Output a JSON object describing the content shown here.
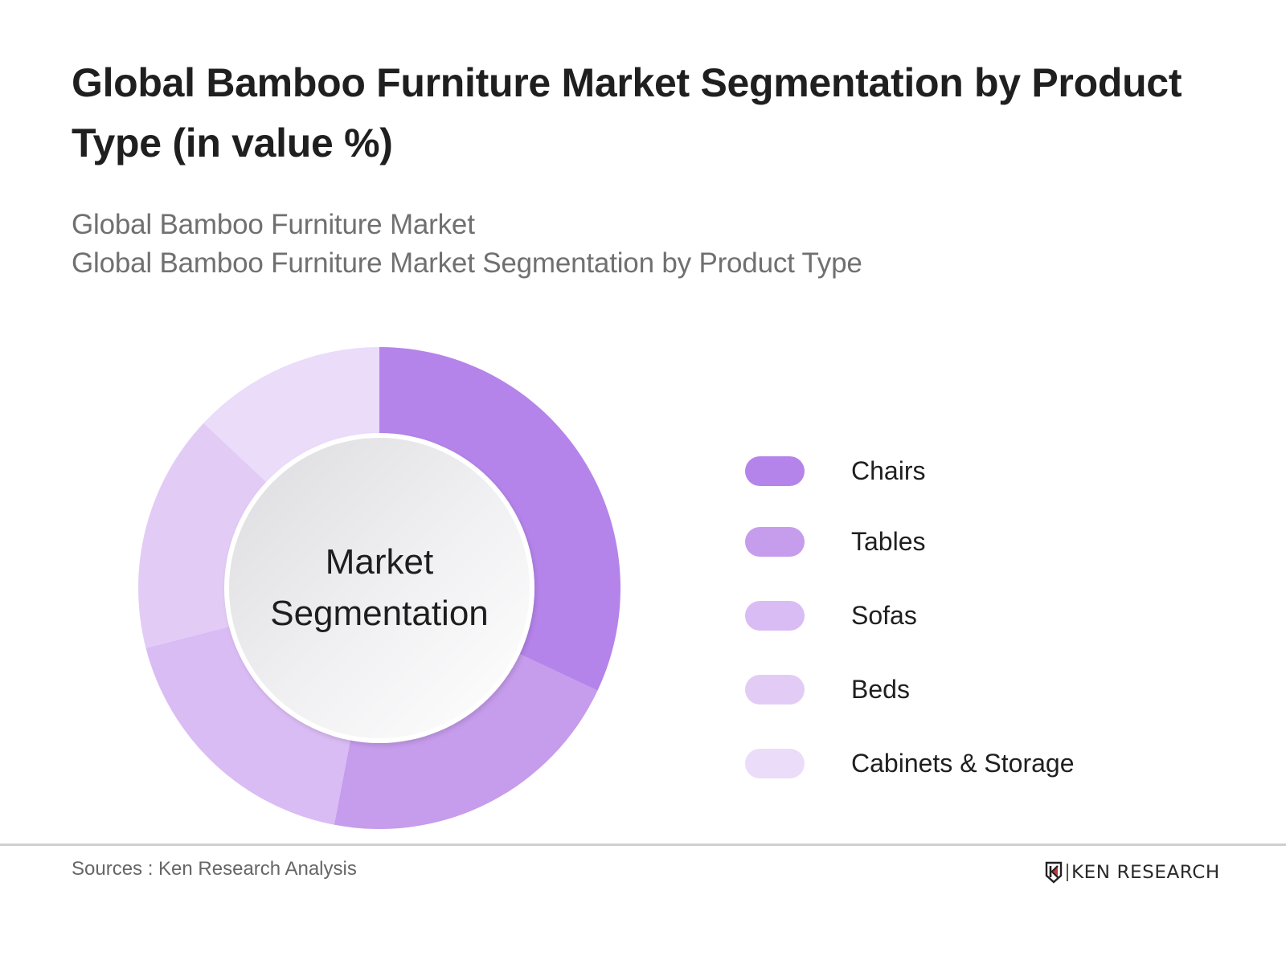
{
  "header": {
    "title": "Global Bamboo Furniture Market Segmentation by Product Type (in value %)",
    "subtitle_line1": "Global Bamboo Furniture Market",
    "subtitle_line2": "Global Bamboo Furniture Market Segmentation by Product Type"
  },
  "donut": {
    "center_line1": "Market",
    "center_line2": "Segmentation"
  },
  "legend": {
    "items": [
      {
        "label": "Chairs",
        "color": "#b584ea"
      },
      {
        "label": "Tables",
        "color": "#c69cec"
      },
      {
        "label": "Sofas",
        "color": "#dabcf4"
      },
      {
        "label": "Beds",
        "color": "#e2ccf6"
      },
      {
        "label": "Cabinets & Storage",
        "color": "#ebdcfa"
      }
    ]
  },
  "footer": {
    "sources": "Sources : Ken Research Analysis",
    "logo_text": "KEN RESEARCH",
    "logo_icon": "ken-research-k-shield-icon"
  },
  "chart_data": {
    "type": "pie",
    "variant": "donut",
    "title": "Global Bamboo Furniture Market Segmentation by Product Type (in value %)",
    "subtitle": "Global Bamboo Furniture Market / Global Bamboo Furniture Market Segmentation by Product Type",
    "center_text": "Market Segmentation",
    "categories": [
      "Chairs",
      "Tables",
      "Sofas",
      "Beds",
      "Cabinets & Storage"
    ],
    "values": [
      32,
      21,
      18,
      16,
      13
    ],
    "unit": "%",
    "colors": [
      "#b584ea",
      "#c69cec",
      "#dabcf4",
      "#e2ccf6",
      "#ebdcfa"
    ],
    "start_angle": "12 o'clock",
    "direction": "clockwise",
    "legend_position": "right",
    "data_labels": false,
    "source": "Sources : Ken Research Analysis"
  }
}
